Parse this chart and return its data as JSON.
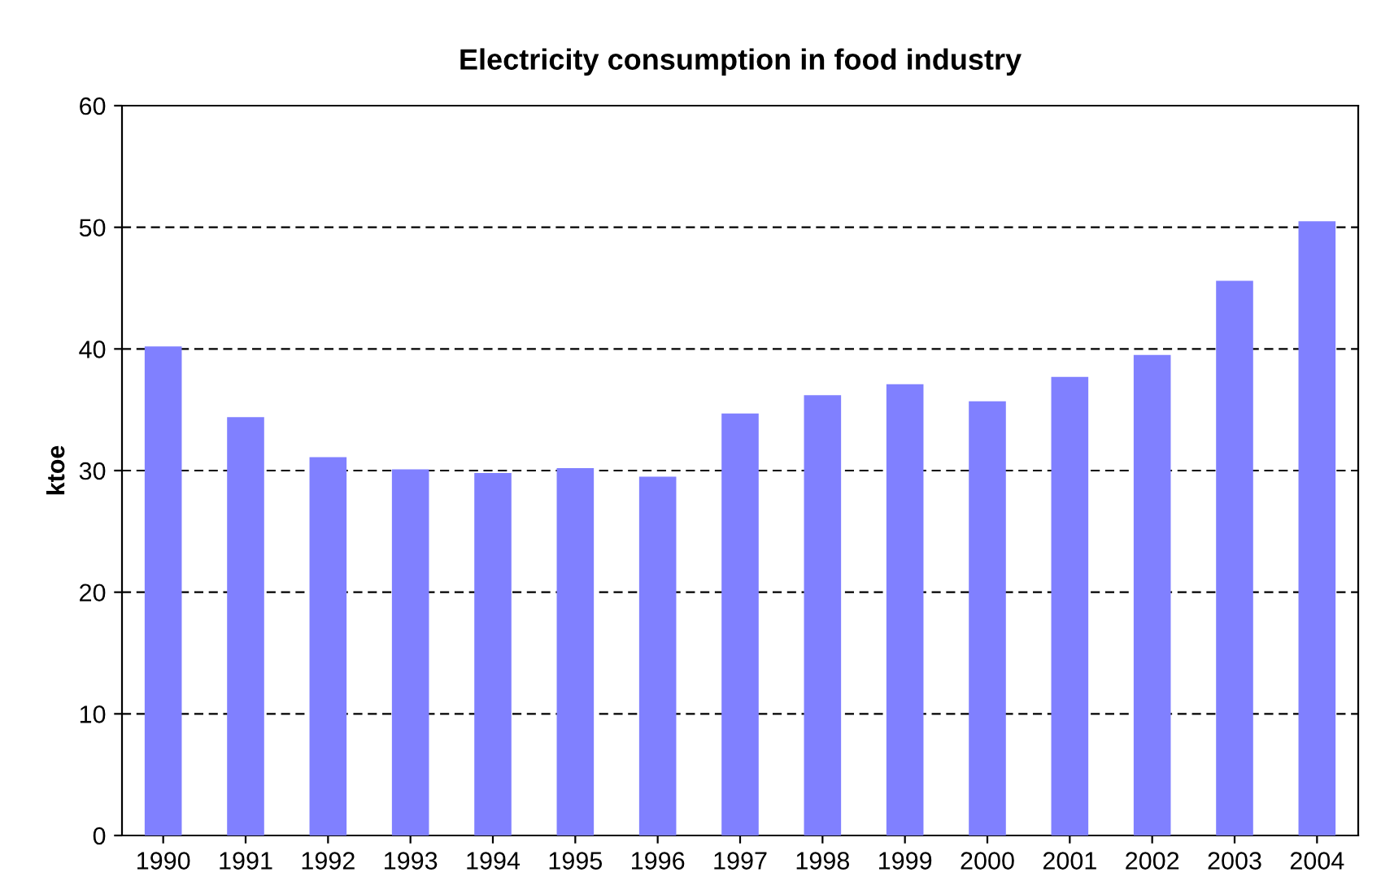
{
  "chart_data": {
    "type": "bar",
    "title": "Electricity consumption in food industry",
    "ylabel": "ktoe",
    "categories": [
      "1990",
      "1991",
      "1992",
      "1993",
      "1994",
      "1995",
      "1996",
      "1997",
      "1998",
      "1999",
      "2000",
      "2001",
      "2002",
      "2003",
      "2004"
    ],
    "values": [
      40.2,
      34.4,
      31.1,
      30.1,
      29.8,
      30.2,
      29.5,
      34.7,
      36.2,
      37.1,
      35.7,
      37.7,
      39.5,
      45.6,
      50.5
    ],
    "color": "#8080ff",
    "ylim": [
      0,
      60
    ],
    "yticks": [
      0,
      10,
      20,
      30,
      40,
      50,
      60
    ],
    "grid": "y",
    "line_style": "dashed"
  }
}
